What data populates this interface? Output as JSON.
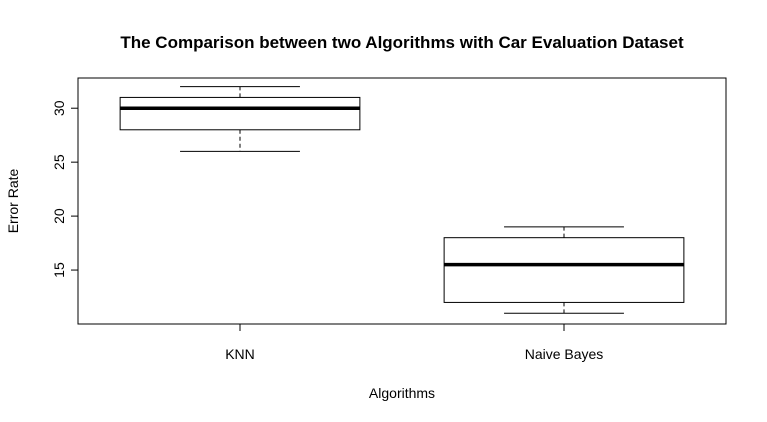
{
  "chart_data": {
    "type": "box",
    "title": "The Comparison between two Algorithms with Car Evaluation Dataset",
    "xlabel": "Algorithms",
    "ylabel": "Error Rate",
    "ylim": [
      10,
      32.8
    ],
    "yticks": [
      15,
      20,
      25,
      30
    ],
    "categories": [
      "KNN",
      "Naive Bayes"
    ],
    "boxes": [
      {
        "category": "KNN",
        "min": 26,
        "q1": 28,
        "median": 30,
        "q3": 31,
        "max": 32
      },
      {
        "category": "Naive Bayes",
        "min": 11,
        "q1": 12,
        "median": 15.5,
        "q3": 18,
        "max": 19
      }
    ],
    "grid": false,
    "legend": "none",
    "colors": {
      "box_fill": "#ffffff",
      "stroke": "#000000"
    }
  }
}
